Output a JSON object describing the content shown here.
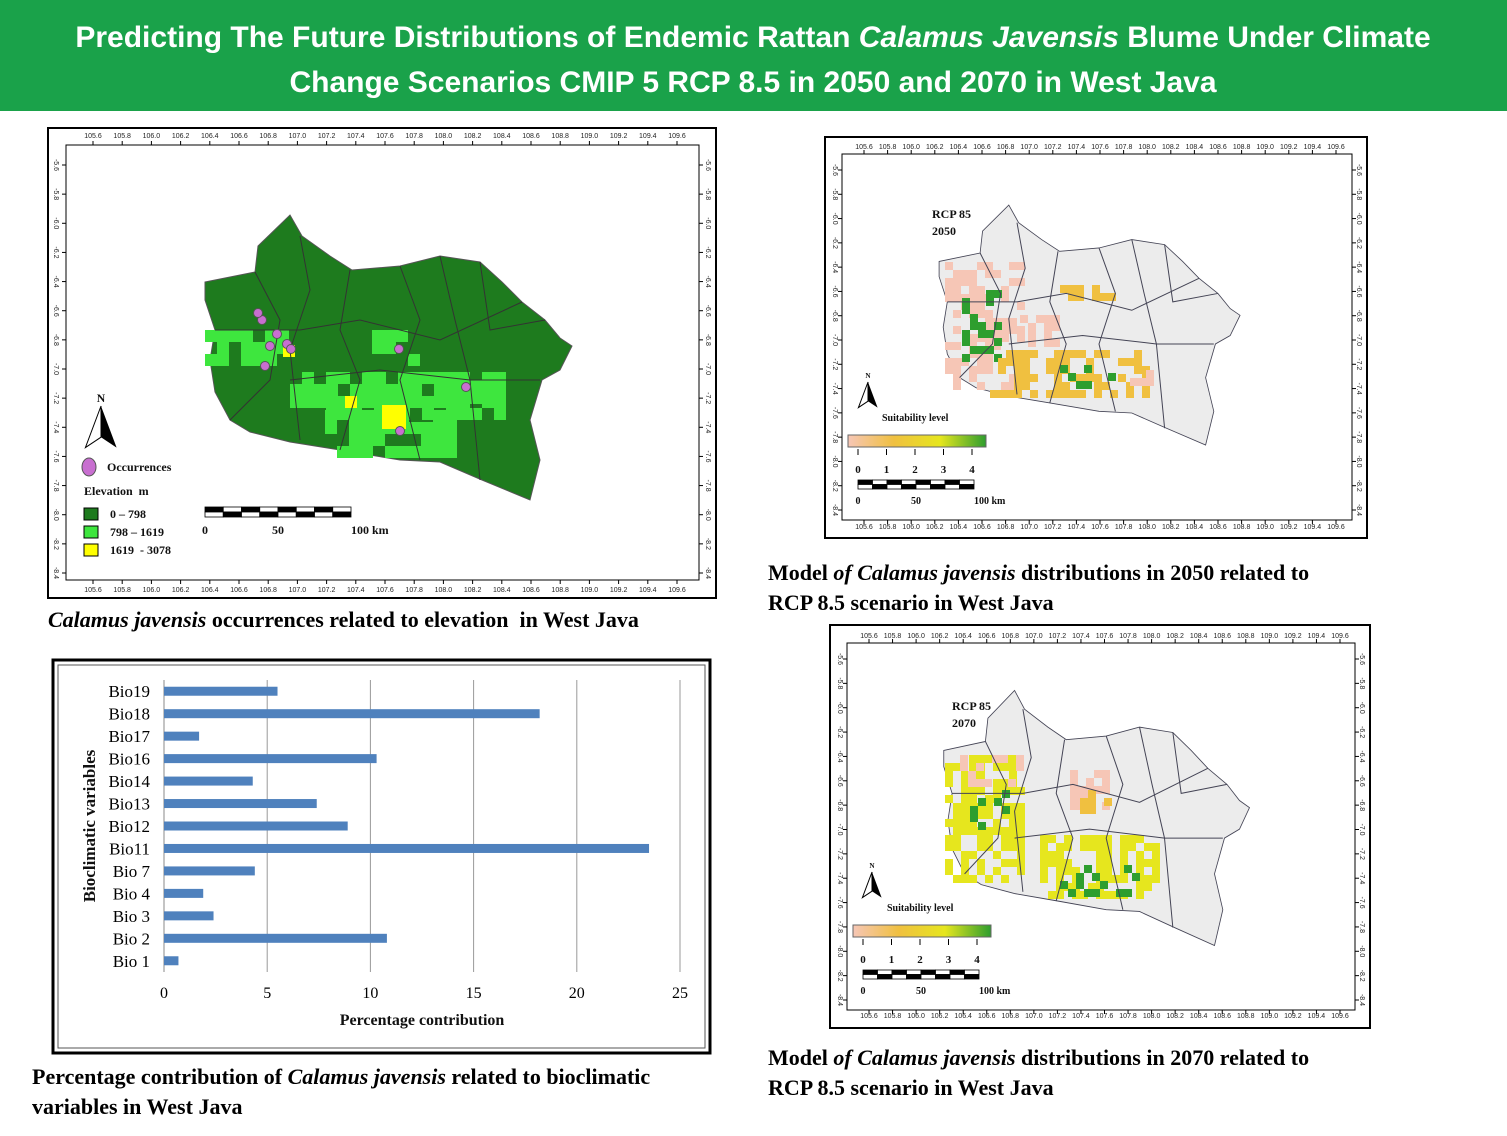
{
  "header": {
    "title_line1": [
      {
        "text": "Predicting The Future Distributions of Endemic Rattan "
      },
      {
        "text": "Calamus Javensis",
        "italic": true
      },
      {
        "text": " Blume Under Climate"
      }
    ],
    "title_line2": [
      {
        "text": "Change Scenarios CMIP 5 RCP 8.5 in 2050 and 2070 in West Java"
      }
    ]
  },
  "map_grid": {
    "lon_ticks": [
      "105.6",
      "105.8",
      "106.0",
      "106.2",
      "106.4",
      "106.6",
      "106.8",
      "107.0",
      "107.2",
      "107.4",
      "107.6",
      "107.8",
      "108.0",
      "108.2",
      "108.4",
      "108.6",
      "108.8",
      "109.0",
      "109.2",
      "109.4",
      "109.6"
    ],
    "lat_ticks": [
      "-5.6",
      "-5.8",
      "-6.0",
      "-6.2",
      "-6.4",
      "-6.6",
      "-6.8",
      "-7.0",
      "-7.2",
      "-7.4",
      "-7.6",
      "-7.8",
      "-8.0",
      "-8.2",
      "-8.4"
    ]
  },
  "elevation_map": {
    "north": "N",
    "occurrences_label": "Occurrences",
    "occurrence_color": "#c86fd0",
    "legend_title": "Elevation  m",
    "classes": [
      {
        "label": "0 – 798",
        "color": "#1e7b1e"
      },
      {
        "label": "798 – 1619",
        "color": "#3ee63e"
      },
      {
        "label": "1619  - 3078",
        "color": "#ffff00"
      }
    ],
    "scale_labels": [
      "0",
      "50",
      "100 km"
    ],
    "caption": [
      [
        {
          "text": "Calamus javensis",
          "italic": true
        },
        {
          "text": " occurrences related to elevation  in West Java"
        }
      ]
    ]
  },
  "map_2050": {
    "label": [
      "RCP 85",
      "2050"
    ],
    "north": "N",
    "legend_title": "Suitability level",
    "legend_ticks": [
      "0",
      "1",
      "2",
      "3",
      "4"
    ],
    "legend_colors": [
      "#f6c6b6",
      "#f0c040",
      "#e6e61e",
      "#2e9e2e"
    ],
    "scale_labels": [
      "0",
      "50",
      "100 km"
    ],
    "caption": [
      [
        {
          "text": "Model "
        },
        {
          "text": "of Calamus javensis",
          "italic": true
        },
        {
          "text": " distributions in 2050 related to"
        }
      ],
      [
        {
          "text": "RCP 8.5 scenario in West Java"
        }
      ]
    ]
  },
  "map_2070": {
    "label": [
      "RCP 85",
      "2070"
    ],
    "north": "N",
    "legend_title": "Suitability level",
    "legend_ticks": [
      "0",
      "1",
      "2",
      "3",
      "4"
    ],
    "legend_colors": [
      "#f6c6b6",
      "#f0c040",
      "#e6e61e",
      "#2e9e2e"
    ],
    "scale_labels": [
      "0",
      "50",
      "100 km"
    ],
    "caption": [
      [
        {
          "text": "Model "
        },
        {
          "text": "of Calamus javensis",
          "italic": true
        },
        {
          "text": " distributions in 2070 related to"
        }
      ],
      [
        {
          "text": "RCP 8.5 scenario in West Java"
        }
      ]
    ]
  },
  "chart_data": {
    "type": "barh",
    "categories": [
      "Bio19",
      "Bio18",
      "Bio17",
      "Bio16",
      "Bio14",
      "Bio13",
      "Bio12",
      "Bio11",
      "Bio 7",
      "Bio 4",
      "Bio 3",
      "Bio 2",
      "Bio 1"
    ],
    "values": [
      5.5,
      18.2,
      1.7,
      10.3,
      4.3,
      7.4,
      8.9,
      23.5,
      4.4,
      1.9,
      2.4,
      10.8,
      0.7
    ],
    "color": "#4f81bd",
    "xlim": [
      0,
      25
    ],
    "xticks": [
      0,
      5,
      10,
      15,
      20,
      25
    ],
    "grid": true,
    "x_label": "Percentage contribution",
    "y_label": "Bioclimatic variables"
  },
  "chart_caption": [
    [
      {
        "text": "Percentage contribution of "
      },
      {
        "text": "Calamus javensis",
        "italic": true
      },
      {
        "text": " related to bioclimatic"
      }
    ],
    [
      {
        "text": "variables in West Java"
      }
    ]
  ]
}
